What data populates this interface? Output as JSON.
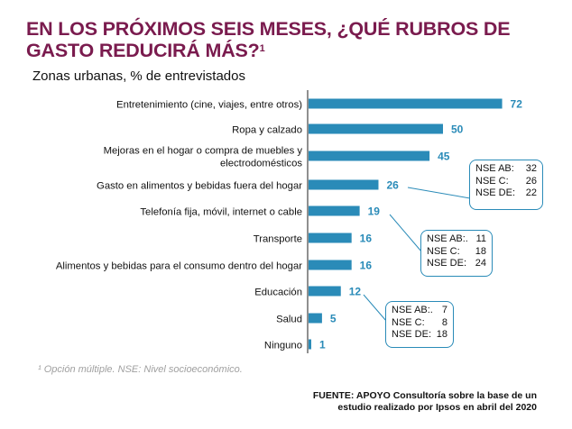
{
  "title": "EN LOS PRÓXIMOS SEIS MESES, ¿QUÉ RUBROS DE GASTO REDUCIRÁ MÁS?",
  "title_sup": "1",
  "subtitle": "Zonas urbanas, % de entrevistados",
  "footnote": "¹ Opción múltiple. NSE: Nivel socioeconómico.",
  "source_line1": "FUENTE: APOYO Consultoría sobre la base de un",
  "source_line2": "estudio realizado por Ipsos en abril del 2020",
  "colors": {
    "title": "#7a1b4e",
    "bar": "#2a8bb8",
    "label": "#2a8bb8"
  },
  "chart_data": {
    "type": "bar",
    "orientation": "horizontal",
    "categories": [
      [
        "Entretenimiento (cine, viajes, entre otros)"
      ],
      [
        "Ropa y calzado"
      ],
      [
        "Mejoras en el hogar o compra de muebles y",
        "electrodomésticos"
      ],
      [
        "Gasto en alimentos y bebidas fuera del hogar"
      ],
      [
        "Telefonía fija, móvil, internet o cable"
      ],
      [
        "Transporte"
      ],
      [
        "Alimentos y bebidas para el consumo dentro del hogar"
      ],
      [
        "Educación"
      ],
      [
        "Salud"
      ],
      [
        "Ninguno"
      ]
    ],
    "values": [
      72,
      50,
      45,
      26,
      19,
      16,
      16,
      12,
      5,
      1
    ],
    "callouts": [
      {
        "category_index": 3,
        "lines": [
          {
            "label": "NSE AB:",
            "value": "32"
          },
          {
            "label": "NSE C:",
            "value": "26"
          },
          {
            "label": "NSE DE:",
            "value": "22"
          }
        ]
      },
      {
        "category_index": 4,
        "lines": [
          {
            "label": "NSE AB:.",
            "value": "11"
          },
          {
            "label": "NSE C:",
            "value": "18"
          },
          {
            "label": "NSE DE:",
            "value": "24"
          }
        ]
      },
      {
        "category_index": 7,
        "lines": [
          {
            "label": "NSE AB:.",
            "value": "7"
          },
          {
            "label": "NSE C:",
            "value": "8"
          },
          {
            "label": "NSE DE:",
            "value": "18"
          }
        ]
      }
    ]
  }
}
